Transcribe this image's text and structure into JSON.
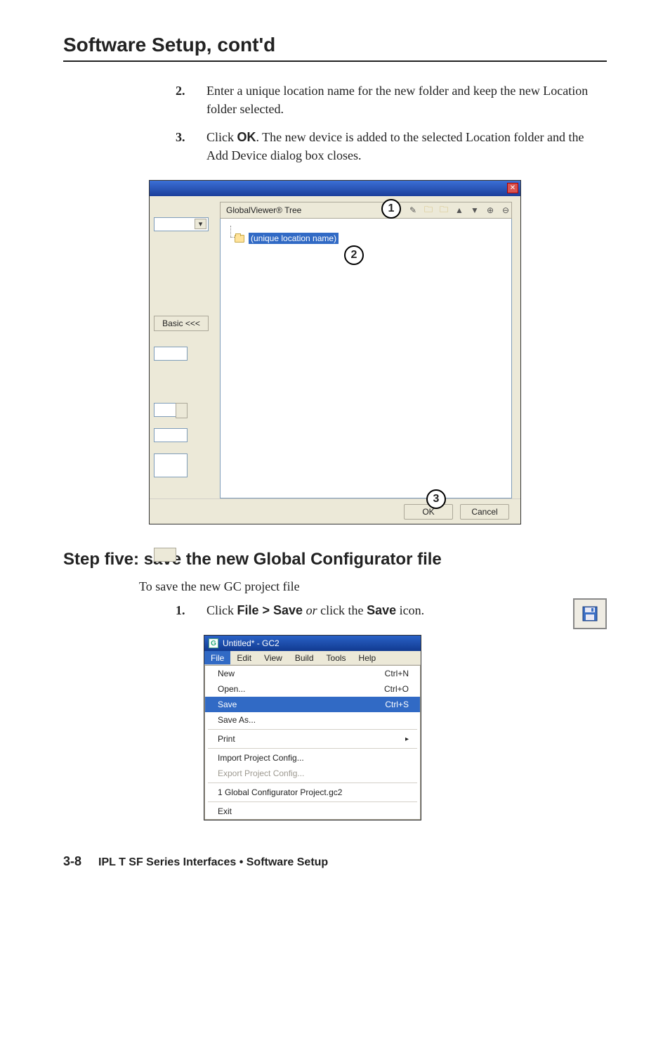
{
  "page": {
    "title": "Software Setup, cont'd",
    "footer_page": "3-8",
    "footer_text": "IPL T SF Series Interfaces • Software Setup"
  },
  "steps_top": [
    {
      "num": "2.",
      "body_pre": "Enter a unique location name for the new folder and keep the new Location folder selected."
    },
    {
      "num": "3.",
      "body_pre": "Click ",
      "bold": "OK",
      "body_post": ".  The new device is added to the selected Location folder and the Add Device dialog box closes."
    }
  ],
  "dialog": {
    "tree_header_label": "GlobalViewer® Tree",
    "tree_item_label": "(unique location name)",
    "basic_button": "Basic <<<",
    "ok": "OK",
    "cancel": "Cancel",
    "callouts": {
      "c1": "1",
      "c2": "2",
      "c3": "3"
    },
    "close_x": "✕",
    "header_icons": {
      "pencil": "✎",
      "folder": "▭",
      "cut": "✂",
      "up": "▲",
      "down": "▼",
      "plus": "⊕",
      "minus": "⊖"
    }
  },
  "section": {
    "heading": "Step five: save the new Global Configurator file",
    "intro": "To save the new GC project file",
    "step_num": "1.",
    "step_pre": "Click ",
    "step_bold1": "File > Save",
    "step_mid": " or ",
    "step_post": "click the ",
    "step_bold2": "Save",
    "step_tail": " icon."
  },
  "filemenu": {
    "title": "Untitled* - GC2",
    "menubar": [
      "File",
      "Edit",
      "View",
      "Build",
      "Tools",
      "Help"
    ],
    "items": [
      {
        "label": "New",
        "accel": "Ctrl+N",
        "state": "normal"
      },
      {
        "label": "Open...",
        "accel": "Ctrl+O",
        "state": "normal"
      },
      {
        "label": "Save",
        "accel": "Ctrl+S",
        "state": "highlight"
      },
      {
        "label": "Save As...",
        "accel": "",
        "state": "normal"
      },
      {
        "sep": true
      },
      {
        "label": "Print",
        "accel": "",
        "state": "normal",
        "arrow": "▸"
      },
      {
        "sep": true
      },
      {
        "label": "Import Project Config...",
        "accel": "",
        "state": "normal"
      },
      {
        "label": "Export Project Config...",
        "accel": "",
        "state": "disabled"
      },
      {
        "sep": true
      },
      {
        "label": "1 Global Configurator Project.gc2",
        "accel": "",
        "state": "normal"
      },
      {
        "sep": true
      },
      {
        "label": "Exit",
        "accel": "",
        "state": "normal"
      }
    ]
  }
}
